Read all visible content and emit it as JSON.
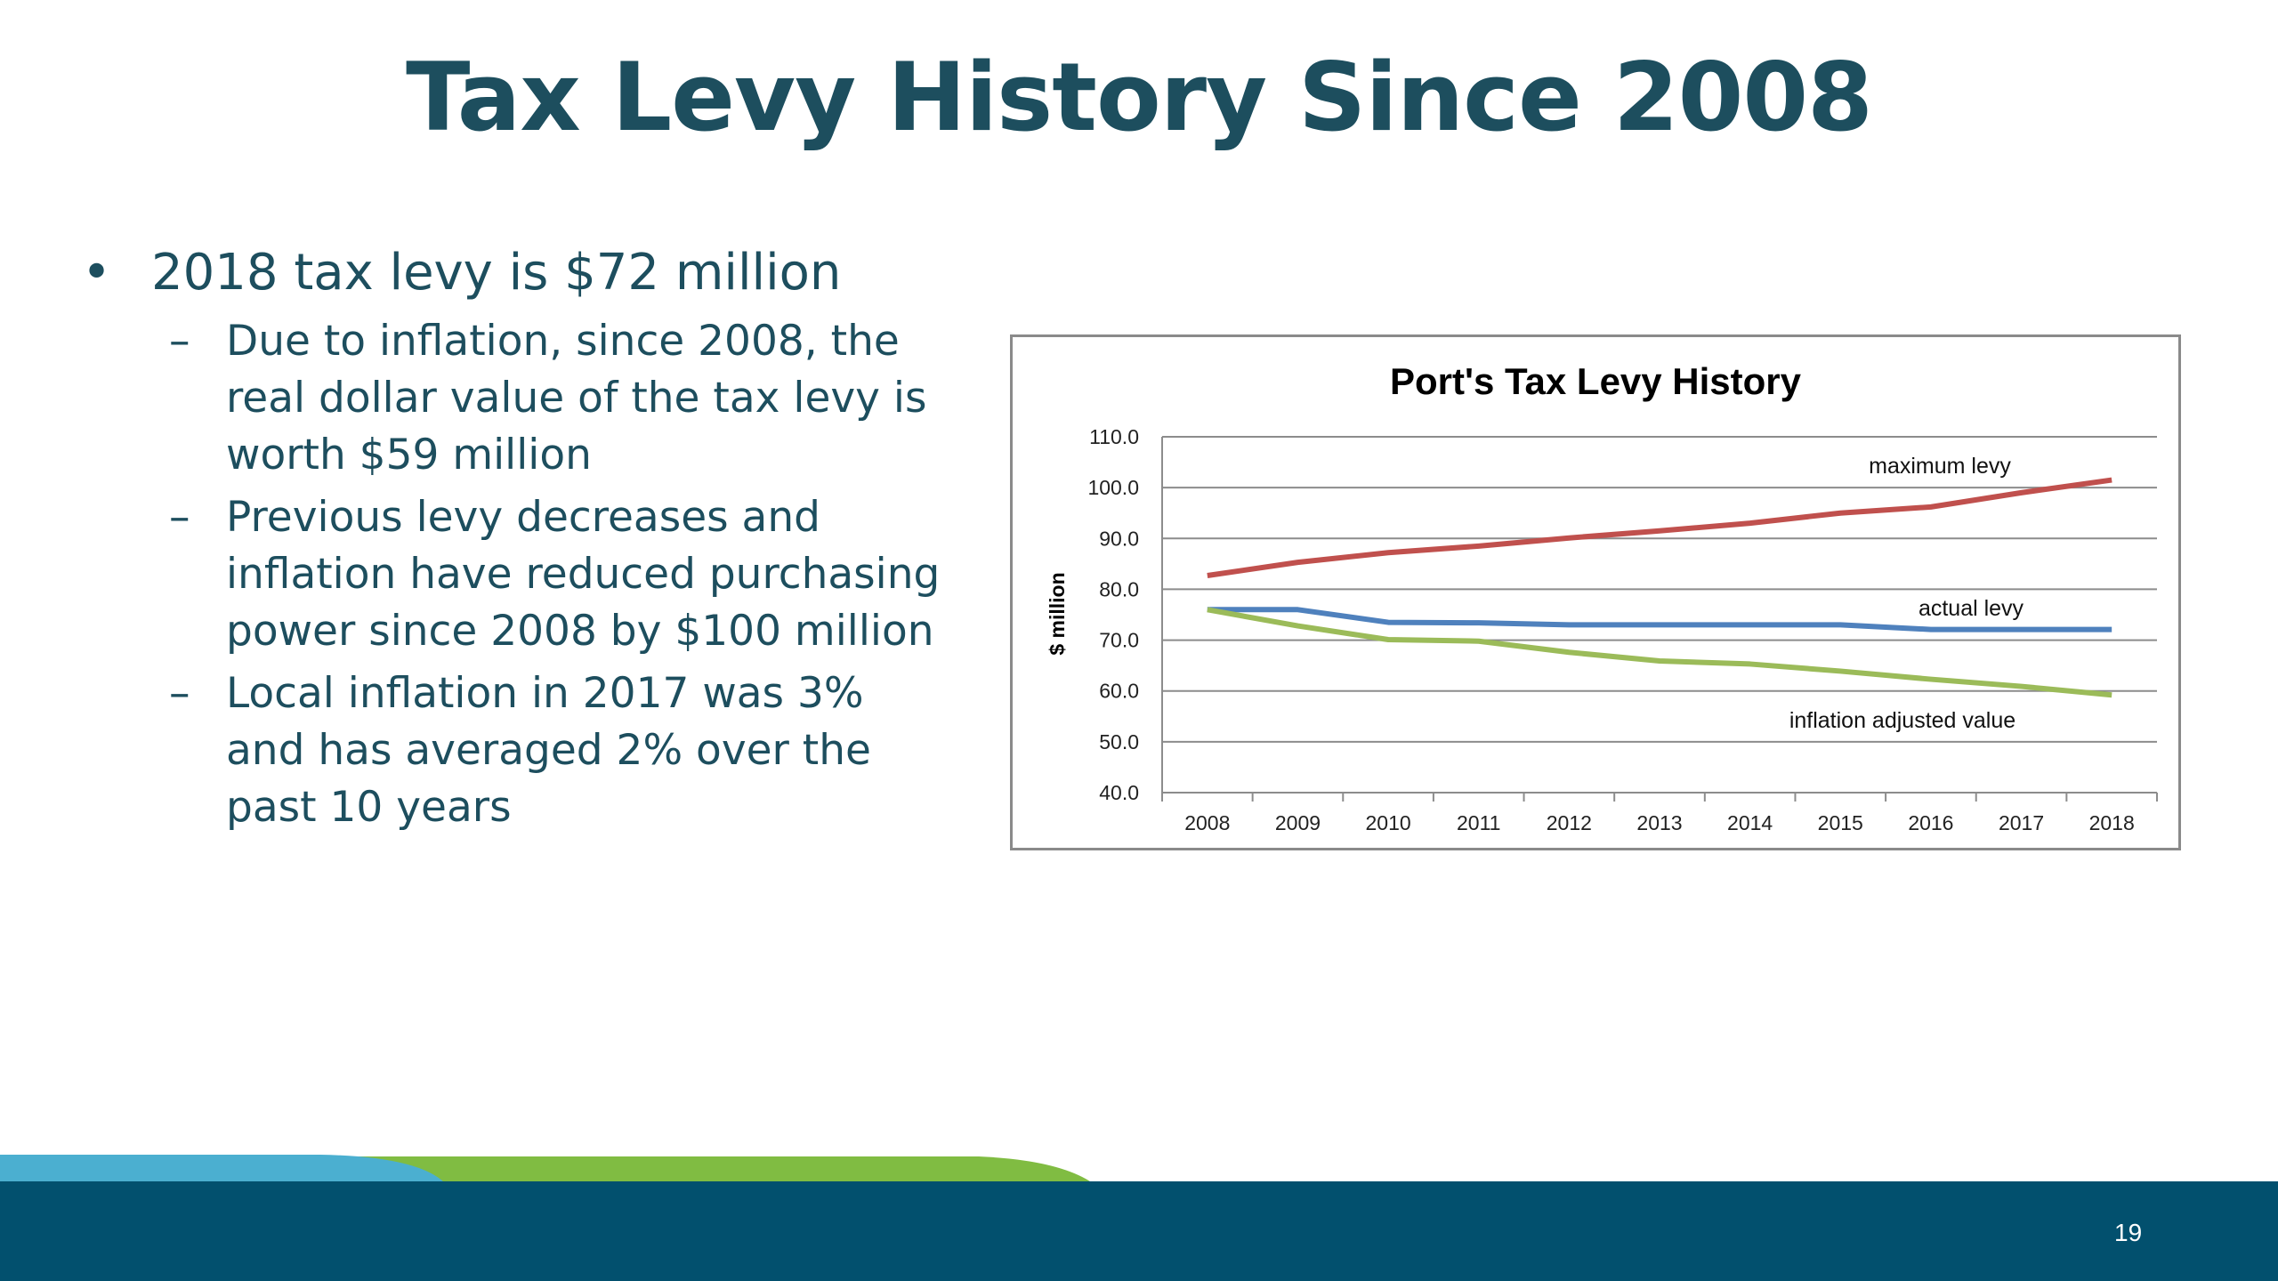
{
  "title": "Tax Levy History Since 2008",
  "bullets": {
    "main": "2018 tax levy is $72 million",
    "subs": [
      "Due to inflation, since 2008, the real dollar value of the tax levy is worth $59 million",
      "Previous levy decreases and inflation have reduced purchasing power since 2008 by $100 million",
      "Local inflation in 2017 was 3% and has averaged 2% over the past 10 years"
    ]
  },
  "page_number": "19",
  "colors": {
    "title": "#1d4e5e",
    "footer": "#02506e",
    "accent_blue": "#4bafd0",
    "accent_green": "#80bc42"
  },
  "chart_data": {
    "type": "line",
    "title": "Port's Tax Levy History",
    "ylabel": "$ million",
    "xlabel": "",
    "categories": [
      "2008",
      "2009",
      "2010",
      "2011",
      "2012",
      "2013",
      "2014",
      "2015",
      "2016",
      "2017",
      "2018"
    ],
    "ylim": [
      40,
      110
    ],
    "yticks": [
      "40.0",
      "50.0",
      "60.0",
      "70.0",
      "80.0",
      "90.0",
      "100.0",
      "110.0"
    ],
    "grid": true,
    "series": [
      {
        "name": "maximum levy",
        "color": "#c0504d",
        "values": [
          82.7,
          85.3,
          87.2,
          88.5,
          90.1,
          91.5,
          93.0,
          95.0,
          96.2,
          99.0,
          101.5
        ]
      },
      {
        "name": "actual levy",
        "color": "#4f81bd",
        "values": [
          76.0,
          76.0,
          73.5,
          73.4,
          73.0,
          73.0,
          73.0,
          73.0,
          72.1,
          72.1,
          72.1
        ]
      },
      {
        "name": "inflation adjusted value",
        "color": "#9bbb59",
        "values": [
          76.0,
          72.8,
          70.1,
          69.8,
          67.6,
          65.9,
          65.3,
          63.9,
          62.3,
          60.9,
          59.2
        ]
      }
    ]
  }
}
